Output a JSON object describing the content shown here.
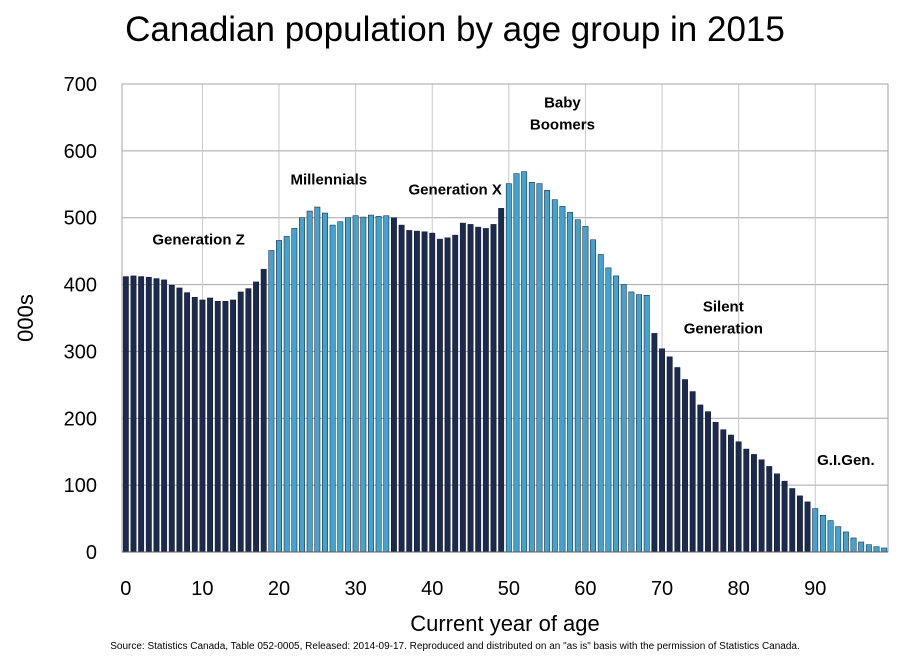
{
  "chart_data": {
    "type": "bar",
    "title": "Canadian population by age group in 2015",
    "xlabel": "Current year of age",
    "ylabel": "000s",
    "ylim": [
      0,
      700
    ],
    "xlim": [
      0,
      99
    ],
    "x_ticks": [
      "0",
      "10",
      "20",
      "30",
      "40",
      "50",
      "60",
      "70",
      "80",
      "90"
    ],
    "y_ticks": [
      "0",
      "100",
      "200",
      "300",
      "400",
      "500",
      "600",
      "700"
    ],
    "grid": true,
    "x": [
      0,
      1,
      2,
      3,
      4,
      5,
      6,
      7,
      8,
      9,
      10,
      11,
      12,
      13,
      14,
      15,
      16,
      17,
      18,
      19,
      20,
      21,
      22,
      23,
      24,
      25,
      26,
      27,
      28,
      29,
      30,
      31,
      32,
      33,
      34,
      35,
      36,
      37,
      38,
      39,
      40,
      41,
      42,
      43,
      44,
      45,
      46,
      47,
      48,
      49,
      50,
      51,
      52,
      53,
      54,
      55,
      56,
      57,
      58,
      59,
      60,
      61,
      62,
      63,
      64,
      65,
      66,
      67,
      68,
      69,
      70,
      71,
      72,
      73,
      74,
      75,
      76,
      77,
      78,
      79,
      80,
      81,
      82,
      83,
      84,
      85,
      86,
      87,
      88,
      89,
      90,
      91,
      92,
      93,
      94,
      95,
      96,
      97,
      98,
      99
    ],
    "values": [
      412,
      413,
      412,
      411,
      409,
      407,
      399,
      395,
      388,
      381,
      377,
      380,
      375,
      375,
      377,
      389,
      394,
      404,
      423,
      451,
      466,
      472,
      484,
      500,
      510,
      516,
      507,
      489,
      494,
      500,
      503,
      501,
      504,
      502,
      503,
      500,
      489,
      481,
      480,
      479,
      477,
      468,
      470,
      474,
      492,
      490,
      486,
      484,
      490,
      514,
      551,
      566,
      569,
      553,
      551,
      541,
      527,
      517,
      508,
      497,
      487,
      467,
      445,
      425,
      413,
      400,
      389,
      385,
      384,
      327,
      304,
      292,
      276,
      258,
      240,
      220,
      210,
      194,
      183,
      175,
      165,
      154,
      146,
      138,
      128,
      117,
      106,
      95,
      84,
      75,
      65,
      55,
      47,
      38,
      30,
      21,
      15,
      11,
      8,
      6
    ],
    "generations": [
      {
        "name": "Generation Z",
        "from": 0,
        "to": 18,
        "color": "#1c2a4e"
      },
      {
        "name": "Millennials",
        "from": 19,
        "to": 34,
        "color": "#45a2cc"
      },
      {
        "name": "Generation X",
        "from": 35,
        "to": 49,
        "color": "#1c2a4e"
      },
      {
        "name": "Baby Boomers",
        "from": 50,
        "to": 68,
        "color": "#45a2cc"
      },
      {
        "name": "Silent Generation",
        "from": 69,
        "to": 89,
        "color": "#1c2a4e"
      },
      {
        "name": "G.I.Gen.",
        "from": 90,
        "to": 99,
        "color": "#45a2cc"
      }
    ],
    "annotations": [
      {
        "lines": [
          "Generation Z"
        ],
        "x": 9.5,
        "y": 460
      },
      {
        "lines": [
          "Millennials"
        ],
        "x": 26.5,
        "y": 550
      },
      {
        "lines": [
          "Generation X"
        ],
        "x": 43,
        "y": 535
      },
      {
        "lines": [
          "Baby",
          "Boomers"
        ],
        "x": 57,
        "y": 665
      },
      {
        "lines": [
          "Silent",
          "Generation"
        ],
        "x": 78,
        "y": 360
      },
      {
        "lines": [
          "G.I.Gen."
        ],
        "x": 94,
        "y": 130
      }
    ]
  },
  "source_note": "Source: Statistics Canada, Table 052-0005, Released: 2014-09-17. Reproduced and distributed on an \"as is\" basis with the permission of Statistics Canada."
}
